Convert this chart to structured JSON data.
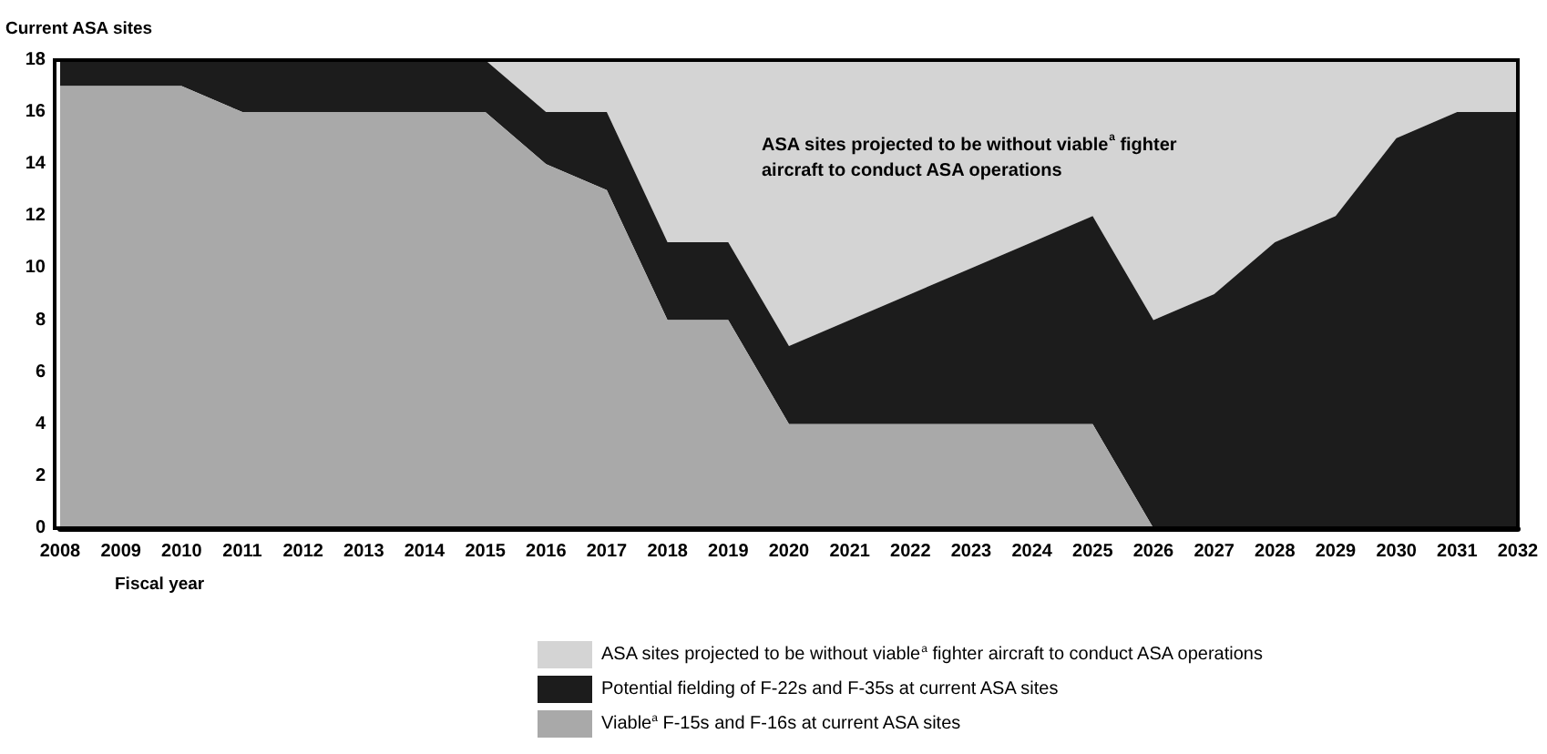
{
  "chart_data": {
    "type": "area",
    "stacked": true,
    "ylabel": "Current ASA sites",
    "xlabel": "Fiscal year",
    "categories": [
      "2008",
      "2009",
      "2010",
      "2011",
      "2012",
      "2013",
      "2014",
      "2015",
      "2016",
      "2017",
      "2018",
      "2019",
      "2020",
      "2021",
      "2022",
      "2023",
      "2024",
      "2025",
      "2026",
      "2027",
      "2028",
      "2029",
      "2030",
      "2031",
      "2032"
    ],
    "series": [
      {
        "name": "Viable$^{a}$ F-15s and F-16s at current ASA sites",
        "color": "#a9a9a9",
        "values": [
          17,
          17,
          17,
          16,
          16,
          16,
          16,
          16,
          14,
          13,
          8,
          8,
          4,
          4,
          4,
          4,
          4,
          4,
          0,
          0,
          0,
          0,
          0,
          0,
          0
        ]
      },
      {
        "name": "Potential fielding of F-22s and F-35s at current ASA sites",
        "color": "#1c1c1c",
        "values": [
          1,
          1,
          1,
          2,
          2,
          2,
          2,
          2,
          2,
          3,
          3,
          3,
          3,
          4,
          5,
          6,
          7,
          8,
          8,
          9,
          11,
          12,
          15,
          16,
          16
        ]
      },
      {
        "name": "ASA sites projected to be without viable$^{a}$ fighter aircraft to conduct ASA operations",
        "color": "#d4d4d4",
        "values": [
          0,
          0,
          0,
          0,
          0,
          0,
          0,
          0,
          2,
          2,
          7,
          7,
          11,
          10,
          9,
          8,
          7,
          6,
          10,
          9,
          7,
          6,
          3,
          2,
          2
        ]
      }
    ],
    "ylim": [
      0,
      18
    ],
    "yticks": [
      0,
      2,
      4,
      6,
      8,
      10,
      12,
      14,
      16,
      18
    ],
    "grid": false,
    "legend": "bottom",
    "annotations": [
      "ASA sites projected to be without viable$^{a}$ fighter aircraft to conduct ASA operations"
    ]
  }
}
